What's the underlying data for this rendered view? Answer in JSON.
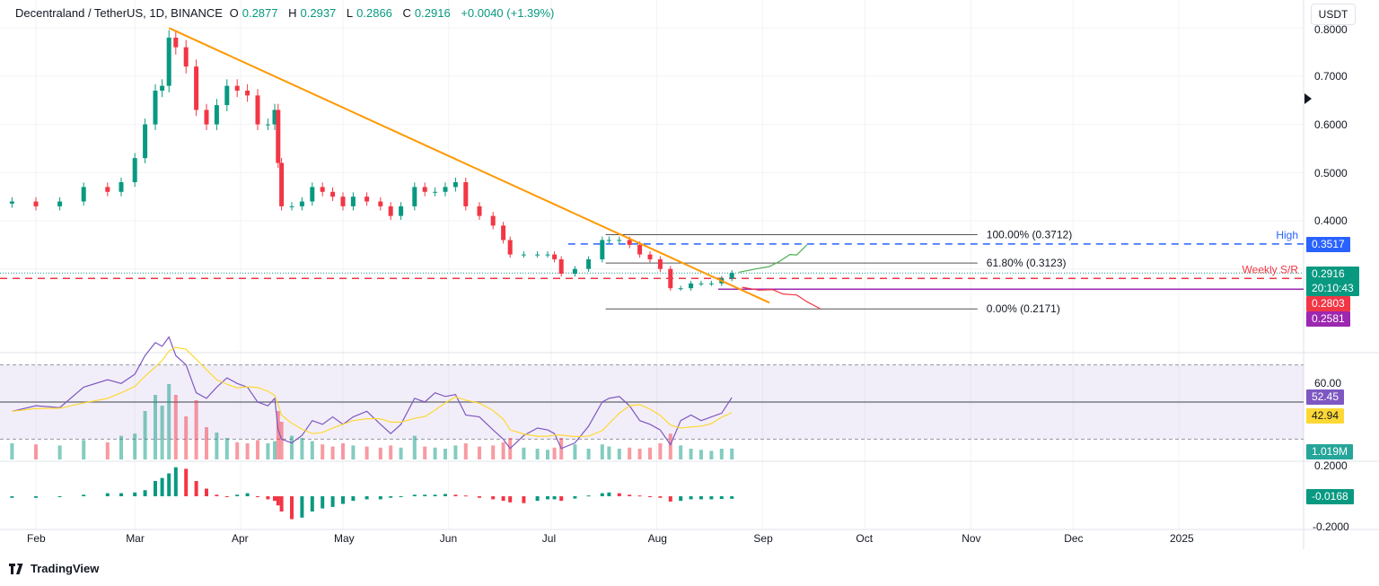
{
  "header": {
    "symbol": "Decentraland / TetherUS, 1D, BINANCE",
    "open_label": "O",
    "open": "0.2877",
    "high_label": "H",
    "high": "0.2937",
    "low_label": "L",
    "low": "0.2866",
    "close_label": "C",
    "close": "0.2916",
    "change": "+0.0040 (+1.39%)"
  },
  "currency_button": "USDT",
  "price_axis": {
    "ticks": [
      "0.8000",
      "0.7000",
      "0.6000",
      "0.5000",
      "0.4000"
    ]
  },
  "price_labels": {
    "high": "0.3517",
    "current": "0.2916",
    "countdown": "20:10:43",
    "weekly_sr": "0.2803",
    "support": "0.2581"
  },
  "annotations": {
    "high_text": "High",
    "weekly_sr_text": "Weekly S/R",
    "fib": [
      {
        "label": "100.00% (0.3712)",
        "level": 0.3712
      },
      {
        "label": "61.80% (0.3123)",
        "level": 0.3123
      },
      {
        "label": "0.00% (0.2171)",
        "level": 0.2171
      }
    ]
  },
  "rsi": {
    "tick": "60.00",
    "value": "52.45",
    "ma_value": "42.94"
  },
  "volume": {
    "value": "1.019M"
  },
  "macd": {
    "ticks": [
      "0.2000",
      "-0.2000"
    ],
    "value": "-0.0168"
  },
  "time_axis": [
    {
      "label": "Feb",
      "d": "2024-02-01"
    },
    {
      "label": "Mar",
      "d": "2024-03-01"
    },
    {
      "label": "Apr",
      "d": "2024-04-01"
    },
    {
      "label": "May",
      "d": "2024-05-01"
    },
    {
      "label": "Jun",
      "d": "2024-06-01"
    },
    {
      "label": "Jul",
      "d": "2024-07-01"
    },
    {
      "label": "Aug",
      "d": "2024-08-01"
    },
    {
      "label": "Sep",
      "d": "2024-09-01"
    },
    {
      "label": "Oct",
      "d": "2024-10-01"
    },
    {
      "label": "Nov",
      "d": "2024-11-01"
    },
    {
      "label": "Dec",
      "d": "2024-12-01"
    },
    {
      "label": "2025",
      "d": "2025-01-01"
    }
  ],
  "branding": "TradingView",
  "colors": {
    "up": "#089981",
    "down": "#f23645",
    "trendline": "#ff9800",
    "high": "#2962ff",
    "weekly_sr": "#f23645",
    "support": "#9c27b0",
    "rsi": "#7e57c2",
    "rsi_ma": "#fdd835",
    "projection_up": "#4caf50",
    "projection_down": "#f23645"
  },
  "chart_data": {
    "type": "candlestick",
    "ylim": [
      0.19,
      0.82
    ],
    "log_scale": false,
    "grid": true,
    "candles": [
      {
        "d": "2024-01-25",
        "c": 0.44,
        "rsi": 45,
        "v": 1.5,
        "m": -0.01
      },
      {
        "d": "2024-02-01",
        "c": 0.43,
        "rsi": 48,
        "v": 1.4,
        "m": -0.01
      },
      {
        "d": "2024-02-08",
        "c": 0.44,
        "rsi": 47,
        "v": 1.3,
        "m": -0.005
      },
      {
        "d": "2024-02-15",
        "c": 0.47,
        "rsi": 58,
        "v": 1.8,
        "m": 0.01
      },
      {
        "d": "2024-02-22",
        "c": 0.46,
        "rsi": 62,
        "v": 1.6,
        "m": 0.02
      },
      {
        "d": "2024-02-26",
        "c": 0.48,
        "rsi": 60,
        "v": 2.2,
        "m": 0.02
      },
      {
        "d": "2024-03-01",
        "c": 0.53,
        "rsi": 65,
        "v": 2.4,
        "m": 0.025
      },
      {
        "d": "2024-03-04",
        "c": 0.6,
        "rsi": 75,
        "v": 4.5,
        "m": 0.04
      },
      {
        "d": "2024-03-07",
        "c": 0.67,
        "rsi": 82,
        "v": 6.0,
        "m": 0.1
      },
      {
        "d": "2024-03-09",
        "c": 0.68,
        "rsi": 80,
        "v": 5.0,
        "m": 0.12
      },
      {
        "d": "2024-03-11",
        "c": 0.78,
        "rsi": 85,
        "v": 7.0,
        "m": 0.15
      },
      {
        "d": "2024-03-13",
        "c": 0.76,
        "rsi": 75,
        "v": 6.0,
        "m": 0.19
      },
      {
        "d": "2024-03-16",
        "c": 0.72,
        "rsi": 70,
        "v": 4.0,
        "m": 0.18
      },
      {
        "d": "2024-03-19",
        "c": 0.63,
        "rsi": 55,
        "v": 5.5,
        "m": 0.1
      },
      {
        "d": "2024-03-22",
        "c": 0.6,
        "rsi": 52,
        "v": 3.0,
        "m": 0.05
      },
      {
        "d": "2024-03-25",
        "c": 0.64,
        "rsi": 58,
        "v": 2.5,
        "m": 0.01
      },
      {
        "d": "2024-03-28",
        "c": 0.68,
        "rsi": 63,
        "v": 2.0,
        "m": 0.0
      },
      {
        "d": "2024-03-31",
        "c": 0.67,
        "rsi": 60,
        "v": 1.6,
        "m": 0.01
      },
      {
        "d": "2024-04-03",
        "c": 0.66,
        "rsi": 58,
        "v": 1.5,
        "m": 0.02
      },
      {
        "d": "2024-04-06",
        "c": 0.6,
        "rsi": 50,
        "v": 1.8,
        "m": 0.0
      },
      {
        "d": "2024-04-09",
        "c": 0.6,
        "rsi": 48,
        "v": 1.5,
        "m": -0.02
      },
      {
        "d": "2024-04-11",
        "c": 0.63,
        "rsi": 52,
        "v": 1.7,
        "m": -0.03
      },
      {
        "d": "2024-04-12",
        "c": 0.52,
        "rsi": 35,
        "v": 4.5,
        "m": -0.06
      },
      {
        "d": "2024-04-13",
        "c": 0.43,
        "rsi": 30,
        "v": 3.5,
        "m": -0.1
      },
      {
        "d": "2024-04-16",
        "c": 0.43,
        "rsi": 28,
        "v": 2.2,
        "m": -0.15
      },
      {
        "d": "2024-04-19",
        "c": 0.44,
        "rsi": 32,
        "v": 2.0,
        "m": -0.14
      },
      {
        "d": "2024-04-22",
        "c": 0.47,
        "rsi": 40,
        "v": 1.7,
        "m": -0.1
      },
      {
        "d": "2024-04-25",
        "c": 0.46,
        "rsi": 38,
        "v": 1.4,
        "m": -0.08
      },
      {
        "d": "2024-04-28",
        "c": 0.45,
        "rsi": 42,
        "v": 1.2,
        "m": -0.07
      },
      {
        "d": "2024-05-01",
        "c": 0.43,
        "rsi": 38,
        "v": 1.5,
        "m": -0.05
      },
      {
        "d": "2024-05-04",
        "c": 0.45,
        "rsi": 42,
        "v": 1.3,
        "m": -0.03
      },
      {
        "d": "2024-05-08",
        "c": 0.44,
        "rsi": 45,
        "v": 1.2,
        "m": -0.02
      },
      {
        "d": "2024-05-12",
        "c": 0.43,
        "rsi": 38,
        "v": 1.1,
        "m": -0.02
      },
      {
        "d": "2024-05-15",
        "c": 0.41,
        "rsi": 33,
        "v": 1.3,
        "m": -0.01
      },
      {
        "d": "2024-05-18",
        "c": 0.43,
        "rsi": 38,
        "v": 1.1,
        "m": 0.0
      },
      {
        "d": "2024-05-22",
        "c": 0.47,
        "rsi": 52,
        "v": 2.2,
        "m": 0.01
      },
      {
        "d": "2024-05-25",
        "c": 0.46,
        "rsi": 50,
        "v": 1.2,
        "m": 0.01
      },
      {
        "d": "2024-05-28",
        "c": 0.46,
        "rsi": 55,
        "v": 1.1,
        "m": 0.01
      },
      {
        "d": "2024-05-31",
        "c": 0.47,
        "rsi": 53,
        "v": 1.0,
        "m": 0.015
      },
      {
        "d": "2024-06-03",
        "c": 0.48,
        "rsi": 54,
        "v": 1.3,
        "m": 0.01
      },
      {
        "d": "2024-06-06",
        "c": 0.43,
        "rsi": 43,
        "v": 1.5,
        "m": 0.005
      },
      {
        "d": "2024-06-10",
        "c": 0.41,
        "rsi": 42,
        "v": 1.2,
        "m": -0.01
      },
      {
        "d": "2024-06-14",
        "c": 0.39,
        "rsi": 35,
        "v": 1.3,
        "m": -0.02
      },
      {
        "d": "2024-06-17",
        "c": 0.36,
        "rsi": 30,
        "v": 1.6,
        "m": -0.03
      },
      {
        "d": "2024-06-19",
        "c": 0.33,
        "rsi": 25,
        "v": 2.0,
        "m": -0.04
      },
      {
        "d": "2024-06-23",
        "c": 0.33,
        "rsi": 32,
        "v": 1.1,
        "m": -0.045
      },
      {
        "d": "2024-06-27",
        "c": 0.33,
        "rsi": 36,
        "v": 1.0,
        "m": -0.03
      },
      {
        "d": "2024-06-30",
        "c": 0.33,
        "rsi": 35,
        "v": 0.9,
        "m": -0.02
      },
      {
        "d": "2024-07-02",
        "c": 0.32,
        "rsi": 33,
        "v": 1.1,
        "m": -0.02
      },
      {
        "d": "2024-07-04",
        "c": 0.29,
        "rsi": 25,
        "v": 2.0,
        "m": -0.03
      },
      {
        "d": "2024-07-08",
        "c": 0.3,
        "rsi": 28,
        "v": 1.4,
        "m": -0.015
      },
      {
        "d": "2024-07-12",
        "c": 0.32,
        "rsi": 37,
        "v": 1.0,
        "m": 0.005
      },
      {
        "d": "2024-07-16",
        "c": 0.36,
        "rsi": 50,
        "v": 1.4,
        "m": 0.02
      },
      {
        "d": "2024-07-18",
        "c": 0.36,
        "rsi": 52,
        "v": 1.2,
        "m": 0.025
      },
      {
        "d": "2024-07-21",
        "c": 0.36,
        "rsi": 53,
        "v": 1.0,
        "m": 0.02
      },
      {
        "d": "2024-07-24",
        "c": 0.35,
        "rsi": 48,
        "v": 1.1,
        "m": 0.01
      },
      {
        "d": "2024-07-27",
        "c": 0.33,
        "rsi": 40,
        "v": 1.0,
        "m": 0.005
      },
      {
        "d": "2024-07-30",
        "c": 0.32,
        "rsi": 38,
        "v": 1.1,
        "m": 0.0
      },
      {
        "d": "2024-08-02",
        "c": 0.3,
        "rsi": 35,
        "v": 1.5,
        "m": -0.01
      },
      {
        "d": "2024-08-05",
        "c": 0.26,
        "rsi": 27,
        "v": 2.4,
        "m": -0.035
      },
      {
        "d": "2024-08-08",
        "c": 0.26,
        "rsi": 40,
        "v": 1.3,
        "m": -0.03
      },
      {
        "d": "2024-08-11",
        "c": 0.27,
        "rsi": 43,
        "v": 1.0,
        "m": -0.02
      },
      {
        "d": "2024-08-14",
        "c": 0.27,
        "rsi": 40,
        "v": 0.9,
        "m": -0.02
      },
      {
        "d": "2024-08-17",
        "c": 0.27,
        "rsi": 42,
        "v": 0.8,
        "m": -0.02
      },
      {
        "d": "2024-08-20",
        "c": 0.28,
        "rsi": 44,
        "v": 1.0,
        "m": -0.018
      },
      {
        "d": "2024-08-23",
        "c": 0.2916,
        "rsi": 52.45,
        "v": 1.019,
        "m": -0.0168
      }
    ],
    "trendline": [
      {
        "d": "2024-03-11",
        "p": 0.8
      },
      {
        "d": "2024-09-03",
        "p": 0.23
      }
    ],
    "fib_start": "2024-07-17",
    "fib_end": "2024-11-03",
    "high_line": {
      "start": "2024-07-06",
      "p": 0.3517
    },
    "weekly_sr": 0.2803,
    "support_line": {
      "start": "2024-08-19",
      "p": 0.2581
    },
    "projection_bullish": [
      {
        "d": "2024-08-25",
        "p": 0.293
      },
      {
        "d": "2024-08-30",
        "p": 0.3
      },
      {
        "d": "2024-09-03",
        "p": 0.305
      },
      {
        "d": "2024-09-06",
        "p": 0.316
      },
      {
        "d": "2024-09-09",
        "p": 0.33
      },
      {
        "d": "2024-09-11",
        "p": 0.329
      },
      {
        "d": "2024-09-14",
        "p": 0.35
      }
    ],
    "projection_bearish": [
      {
        "d": "2024-08-26",
        "p": 0.262
      },
      {
        "d": "2024-08-31",
        "p": 0.256
      },
      {
        "d": "2024-09-04",
        "p": 0.257
      },
      {
        "d": "2024-09-07",
        "p": 0.248
      },
      {
        "d": "2024-09-11",
        "p": 0.246
      },
      {
        "d": "2024-09-14",
        "p": 0.232
      },
      {
        "d": "2024-09-18",
        "p": 0.217
      }
    ],
    "rsi_bands": [
      70,
      50,
      30
    ]
  }
}
